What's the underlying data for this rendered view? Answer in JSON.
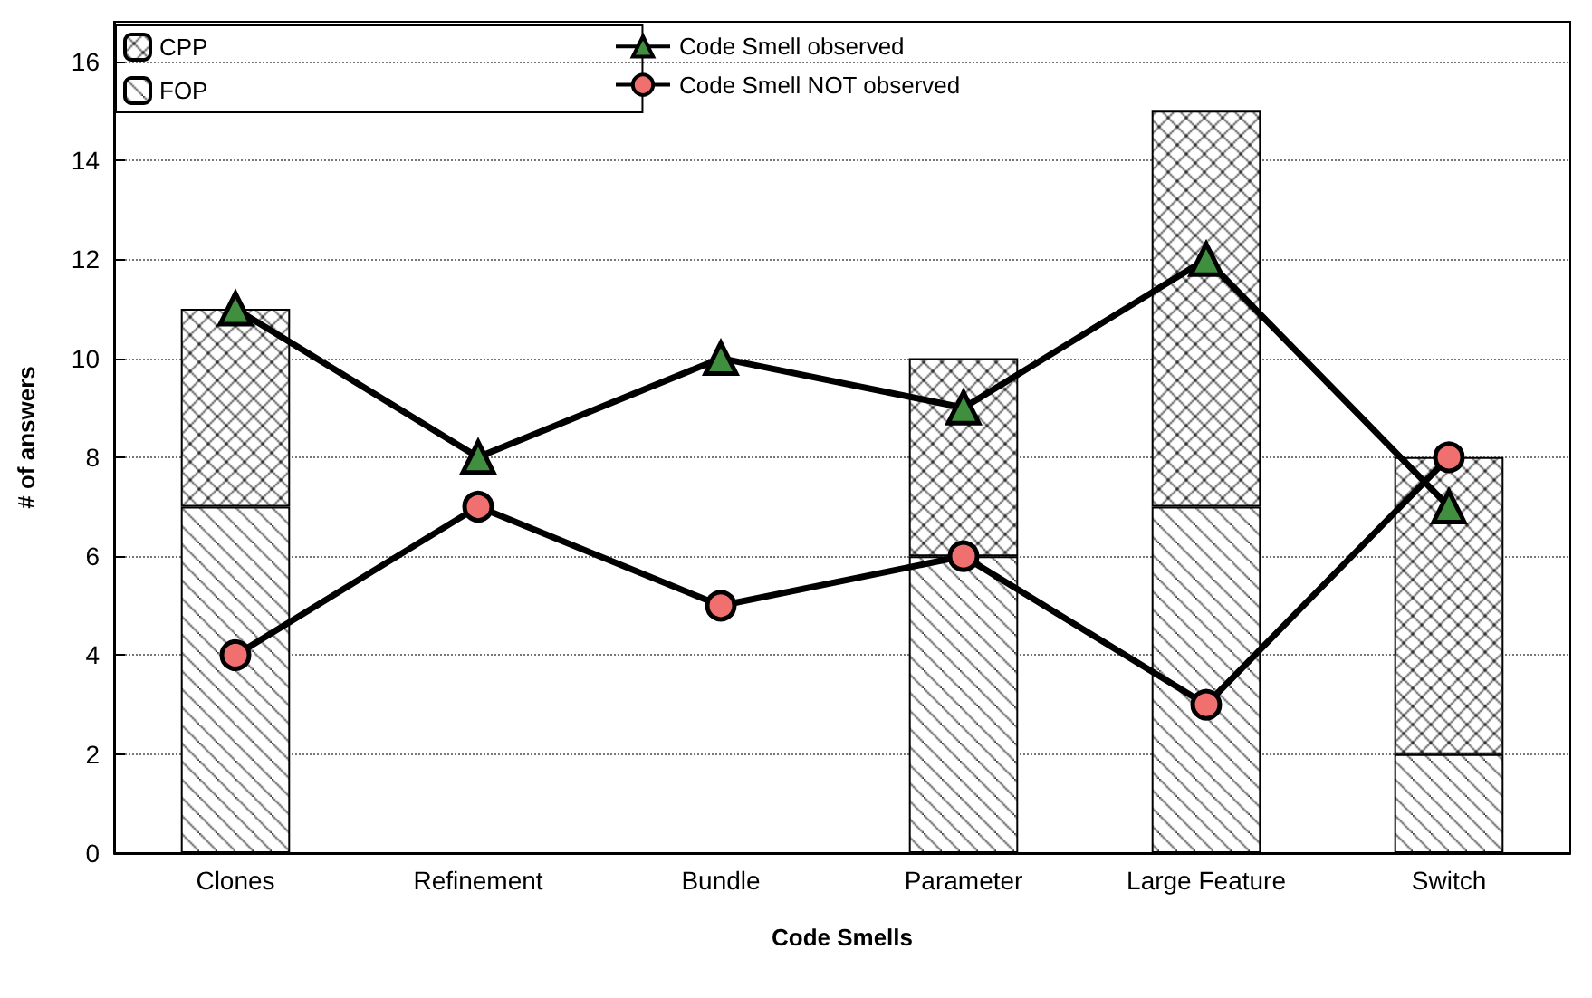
{
  "chart_data": {
    "type": "bar",
    "stacked": true,
    "xlabel": "Code Smells",
    "ylabel": "# of answers",
    "categories": [
      "Clones",
      "Refinement",
      "Bundle",
      "Parameter",
      "Large Feature",
      "Switch"
    ],
    "series": [
      {
        "name": "FOP",
        "color": "#000000",
        "values": [
          7,
          0,
          0,
          6,
          7,
          2
        ]
      },
      {
        "name": "CPP",
        "color": "#000000",
        "values": [
          4,
          0,
          0,
          4,
          8,
          6
        ]
      },
      {
        "name": "Code Smell observed",
        "type": "line",
        "marker": "triangle",
        "color": "#3f8f3f",
        "values": [
          11,
          8,
          10,
          9,
          12,
          7
        ]
      },
      {
        "name": "Code Smell NOT observed",
        "type": "line",
        "marker": "circle",
        "color": "#f07070",
        "values": [
          4,
          7,
          5,
          6,
          3,
          8
        ]
      }
    ],
    "ylim": [
      0,
      16.8
    ],
    "yticks": [
      0,
      2,
      4,
      6,
      8,
      10,
      12,
      14,
      16
    ],
    "grid": "y",
    "legend": "top left"
  }
}
